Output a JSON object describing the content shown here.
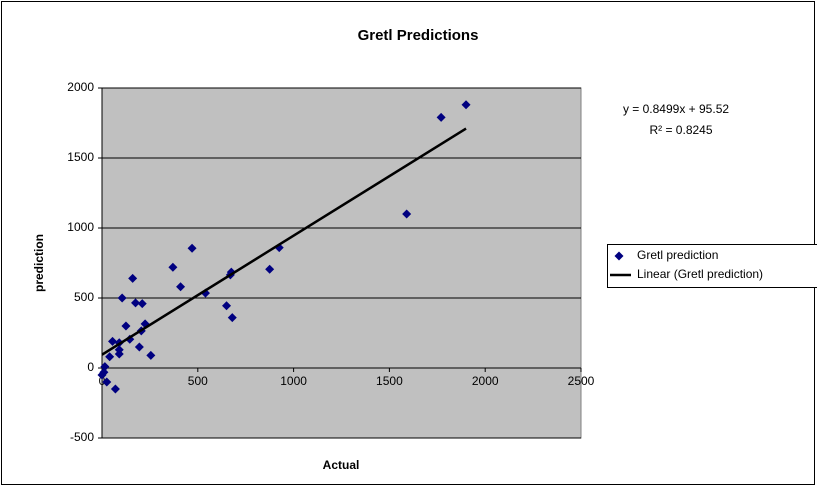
{
  "chart_data": {
    "type": "scatter",
    "title": "Gretl Predictions",
    "x_label": "Actual",
    "y_label": "prediction",
    "xlim": [
      0,
      2500
    ],
    "xticks": [
      0,
      500,
      1000,
      1500,
      2000,
      2500
    ],
    "ylim": [
      -500,
      2000
    ],
    "yticks": [
      -500,
      0,
      500,
      1000,
      1500,
      2000
    ],
    "grid": true,
    "plot_background": "#c0c0c0",
    "legend": "right",
    "series": [
      {
        "name": "Gretl prediction",
        "color": "#000080",
        "x": [
          1770,
          1900,
          1590,
          925,
          875,
          675,
          670,
          650,
          680,
          540,
          470,
          410,
          370,
          160,
          105,
          175,
          210,
          125,
          145,
          225,
          205,
          195,
          255,
          90,
          90,
          90,
          55,
          40,
          10,
          15,
          0,
          25,
          70
        ],
        "values": [
          1790,
          1880,
          1100,
          860,
          705,
          685,
          665,
          445,
          360,
          535,
          855,
          580,
          720,
          640,
          500,
          465,
          460,
          300,
          205,
          315,
          265,
          150,
          90,
          180,
          130,
          100,
          190,
          80,
          -30,
          10,
          -50,
          -100,
          -150
        ]
      }
    ],
    "trendline": {
      "name": "Linear (Gretl prediction)",
      "color": "#000000",
      "equation": "y = 0.8499x + 95.52",
      "r_squared": "R² = 0.8245",
      "slope": 0.8499,
      "intercept": 95.52
    }
  }
}
